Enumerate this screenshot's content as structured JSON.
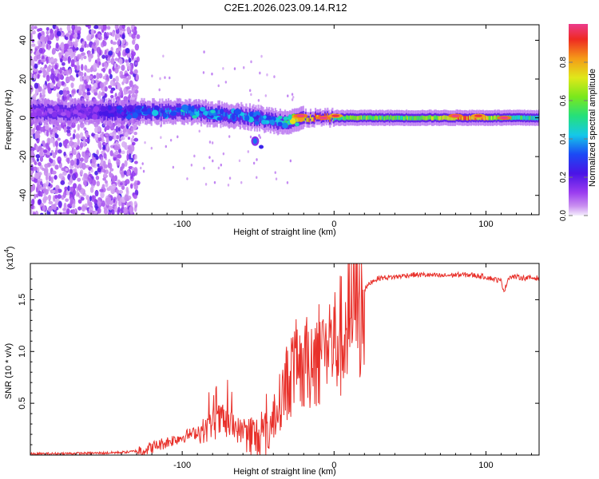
{
  "title": "C2E1.2026.023.09.14.R12",
  "chart_data": [
    {
      "type": "heatmap",
      "title": "C2E1.2026.023.09.14.R12",
      "xlabel": "Height of straight line (km)",
      "ylabel": "Frequency (Hz)",
      "xlim": [
        -200,
        135
      ],
      "ylim": [
        -50,
        48
      ],
      "x_ticks": [
        -100,
        0,
        100
      ],
      "x_tick_labels": [
        "-100",
        "0",
        "100"
      ],
      "y_ticks": [
        -40,
        -20,
        0,
        20,
        40
      ],
      "y_tick_labels": [
        "-40",
        "-20",
        "0",
        "20",
        "40"
      ],
      "colorbar": {
        "label": "Normalized spectral amplitude",
        "range": [
          0,
          1
        ],
        "ticks": [
          0.0,
          0.2,
          0.4,
          0.6,
          0.8
        ],
        "tick_labels": [
          "0.0",
          "0.2",
          "0.4",
          "0.6",
          "0.8"
        ]
      },
      "noise_region_x": [
        -200,
        -135
      ],
      "ridge": {
        "x": [
          -200,
          -170,
          -150,
          -135,
          -120,
          -100,
          -80,
          -60,
          -45,
          -35,
          -25,
          -15,
          -5,
          0,
          10,
          30,
          50,
          70,
          90,
          110,
          135
        ],
        "frequency": [
          3,
          3,
          3,
          3,
          3,
          3,
          2,
          1,
          -1,
          -2,
          -1,
          0,
          0,
          0,
          0,
          0,
          0,
          0,
          0,
          0,
          0
        ],
        "amplitude": [
          0.12,
          0.15,
          0.2,
          0.3,
          0.35,
          0.4,
          0.4,
          0.4,
          0.35,
          0.45,
          0.7,
          0.9,
          1.0,
          0.5,
          0.65,
          0.6,
          0.6,
          0.7,
          0.95,
          0.6,
          0.5
        ]
      },
      "secondary_blob": {
        "x": -52,
        "frequency": -12,
        "amplitude": 0.35
      },
      "strong_spots": [
        {
          "x": -22,
          "frequency": 1,
          "amplitude": 1.0
        },
        {
          "x": -7,
          "frequency": 0,
          "amplitude": 1.0
        },
        {
          "x": 1,
          "frequency": 1,
          "amplitude": 0.95
        },
        {
          "x": 80,
          "frequency": 1,
          "amplitude": 1.0
        },
        {
          "x": 95,
          "frequency": 1,
          "amplitude": 0.95
        },
        {
          "x": 112,
          "frequency": 0,
          "amplitude": 1.0
        }
      ]
    },
    {
      "type": "line",
      "xlabel": "Height of straight line (km)",
      "ylabel": "SNR (10 * v/v)",
      "scale_label": "(x10",
      "scale_exponent": "4",
      "xlim": [
        -200,
        135
      ],
      "ylim": [
        0,
        1.85
      ],
      "x_ticks": [
        -100,
        0,
        100
      ],
      "x_tick_labels": [
        "-100",
        "0",
        "100"
      ],
      "y_ticks": [
        0.5,
        1.0,
        1.5
      ],
      "y_tick_labels": [
        "0.5",
        "1.0",
        "1.5"
      ],
      "series": [
        {
          "name": "SNR",
          "color": "#e8302a",
          "x": [
            -200,
            -150,
            -135,
            -125,
            -115,
            -105,
            -95,
            -85,
            -80,
            -75,
            -70,
            -65,
            -60,
            -55,
            -50,
            -45,
            -40,
            -35,
            -30,
            -25,
            -20,
            -15,
            -10,
            -5,
            0,
            5,
            10,
            15,
            20,
            25,
            30,
            40,
            50,
            60,
            70,
            80,
            90,
            100,
            105,
            110,
            112,
            115,
            120,
            125,
            135
          ],
          "values": [
            0.01,
            0.02,
            0.03,
            0.05,
            0.1,
            0.15,
            0.2,
            0.24,
            0.3,
            0.33,
            0.3,
            0.26,
            0.22,
            0.18,
            0.15,
            0.2,
            0.32,
            0.55,
            0.75,
            0.85,
            0.82,
            0.95,
            1.0,
            1.1,
            1.08,
            1.15,
            1.3,
            1.45,
            1.6,
            1.68,
            1.71,
            1.72,
            1.74,
            1.74,
            1.73,
            1.74,
            1.74,
            1.72,
            1.7,
            1.68,
            1.58,
            1.72,
            1.72,
            1.71,
            1.71
          ]
        }
      ]
    }
  ],
  "colors": {
    "line": "#e8302a",
    "axis": "#000000"
  }
}
